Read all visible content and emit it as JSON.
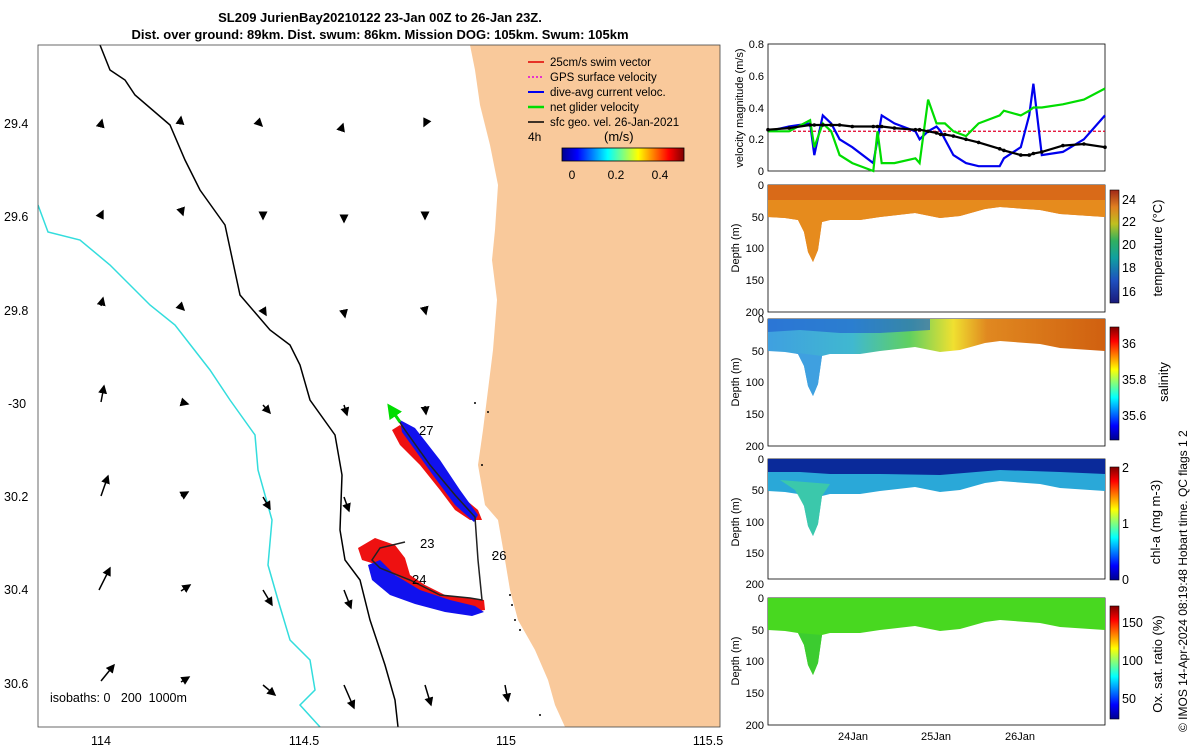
{
  "header": {
    "title_line1": "SL209 JurienBay20210122 23-Jan 00Z to 26-Jan 23Z.",
    "title_line2": "Dist. over ground: 89km. Dist. swum: 86km. Mission DOG: 105km. Swum: 105km"
  },
  "map": {
    "lon_ticks": [
      "114",
      "114.5",
      "115",
      "115.5"
    ],
    "lat_ticks": [
      "29.4",
      "29.6",
      "29.8",
      "-30",
      "30.2",
      "30.4",
      "30.6"
    ],
    "legend": [
      {
        "label": "25cm/s swim vector",
        "color": "#e00000"
      },
      {
        "label": "GPS surface velocity",
        "color": "#e000e0"
      },
      {
        "label": "dive-avg current veloc.",
        "color": "#0000ee"
      },
      {
        "label": "net glider velocity",
        "color": "#00dd00"
      },
      {
        "label": "sfc geo. vel. 26-Jan-2021",
        "color": "#000000"
      }
    ],
    "time_label": "4h",
    "colorbar_title": "(m/s)",
    "colorbar_ticks": [
      "0",
      "0.2",
      "0.4"
    ],
    "day_labels": [
      "23",
      "24",
      "26",
      "27"
    ],
    "isobaths_label": "isobaths: 0   200  1000m",
    "colors": {
      "land": "#f9c99b",
      "isobath_200": "#000000",
      "isobath_1000": "#33dddd"
    }
  },
  "chart_data": [
    {
      "type": "line",
      "title": "",
      "xlabel": "",
      "ylabel": "velocity magnitude (m/s)",
      "xlim": [
        0,
        4
      ],
      "ylim": [
        0,
        0.8
      ],
      "yticks": [
        "0",
        "0.2",
        "0.4",
        "0.6",
        "0.8"
      ],
      "x": [
        0,
        0.25,
        0.5,
        0.55,
        0.65,
        0.75,
        0.85,
        1.0,
        1.25,
        1.3,
        1.35,
        1.5,
        1.75,
        1.8,
        1.9,
        2.0,
        2.05,
        2.1,
        2.2,
        2.35,
        2.5,
        2.75,
        2.8,
        3.0,
        3.1,
        3.15,
        3.25,
        3.5,
        3.75,
        4.0
      ],
      "series": [
        {
          "name": "GPS surface velocity",
          "color": "#e000e0",
          "values": [
            0.25,
            0.25,
            0.25,
            0.25,
            0.25,
            0.25,
            0.25,
            0.25,
            0.25,
            0.25,
            0.25,
            0.25,
            0.25,
            0.25,
            0.25,
            0.25,
            0.25,
            0.25,
            0.25,
            0.25,
            0.25,
            0.25,
            0.25,
            0.25,
            0.25,
            0.25,
            0.25,
            0.25,
            0.25,
            0.25
          ]
        },
        {
          "name": "25cm/s swim vector",
          "color": "#e00000",
          "values": [
            0.25,
            0.25,
            0.25,
            0.25,
            0.25,
            0.25,
            0.25,
            0.25,
            0.25,
            0.25,
            0.25,
            0.25,
            0.25,
            0.25,
            0.25,
            0.25,
            0.25,
            0.25,
            0.25,
            0.25,
            0.25,
            0.25,
            0.25,
            0.25,
            0.25,
            0.25,
            0.25,
            0.25,
            0.25,
            0.25
          ]
        },
        {
          "name": "dive-avg current veloc.",
          "color": "#0000ee",
          "values": [
            0.25,
            0.28,
            0.3,
            0.1,
            0.35,
            0.3,
            0.2,
            0.15,
            0.05,
            0.2,
            0.35,
            0.3,
            0.25,
            0.2,
            0.25,
            0.28,
            0.25,
            0.2,
            0.1,
            0.05,
            0.03,
            0.03,
            0.08,
            0.15,
            0.35,
            0.55,
            0.1,
            0.12,
            0.2,
            0.35
          ]
        },
        {
          "name": "net glider velocity",
          "color": "#00dd00",
          "values": [
            0.25,
            0.25,
            0.32,
            0.15,
            0.3,
            0.25,
            0.1,
            0.05,
            0.0,
            0.25,
            0.05,
            0.05,
            0.08,
            0.05,
            0.45,
            0.3,
            0.3,
            0.3,
            0.25,
            0.22,
            0.3,
            0.35,
            0.38,
            0.35,
            0.38,
            0.4,
            0.4,
            0.42,
            0.45,
            0.52
          ]
        },
        {
          "name": "sfc geo. vel.",
          "color": "#000000",
          "values": [
            0.26,
            0.27,
            0.29,
            0.29,
            0.29,
            0.29,
            0.29,
            0.28,
            0.28,
            0.28,
            0.28,
            0.27,
            0.26,
            0.26,
            0.25,
            0.24,
            0.23,
            0.23,
            0.22,
            0.2,
            0.18,
            0.14,
            0.13,
            0.1,
            0.1,
            0.11,
            0.12,
            0.16,
            0.17,
            0.15
          ]
        }
      ]
    },
    {
      "type": "heatmap",
      "variable": "temperature",
      "clabel": "temperature (°C)",
      "clim": [
        15,
        25
      ],
      "cticks": [
        "16",
        "18",
        "20",
        "22",
        "24"
      ],
      "mixed_layer_value": 23,
      "deep_value": 21,
      "ylabel": "Depth (m)",
      "ylim": [
        200,
        0
      ],
      "yticks": [
        "0",
        "50",
        "100",
        "150",
        "200"
      ]
    },
    {
      "type": "heatmap",
      "variable": "salinity",
      "clabel": "salinity",
      "clim": [
        35.5,
        36.1
      ],
      "cticks": [
        "35.6",
        "35.8",
        "36"
      ],
      "values_along_track": [
        35.6,
        35.65,
        35.7,
        35.75,
        35.9,
        36.0,
        36.05,
        36.05,
        36.05
      ],
      "ylabel": "Depth (m)",
      "ylim": [
        200,
        0
      ],
      "yticks": [
        "0",
        "50",
        "100",
        "150",
        "200"
      ]
    },
    {
      "type": "heatmap",
      "variable": "chl-a",
      "clabel": "chl-a (mg m-3)",
      "clim": [
        0,
        2
      ],
      "cticks": [
        "0",
        "1",
        "2"
      ],
      "surface_value": 0.1,
      "subsurface_value": 0.8,
      "ylabel": "Depth (m)",
      "ylim": [
        200,
        0
      ],
      "yticks": [
        "0",
        "50",
        "100",
        "150",
        "200"
      ]
    },
    {
      "type": "heatmap",
      "variable": "oxygen",
      "clabel": "Ox. sat. ratio (%)",
      "clim": [
        25,
        175
      ],
      "cticks": [
        "50",
        "100",
        "150"
      ],
      "typical_value": 125,
      "ylabel": "Depth (m)",
      "ylim": [
        200,
        0
      ],
      "yticks": [
        "0",
        "50",
        "100",
        "150",
        "200"
      ],
      "xticks": [
        "24Jan",
        "25Jan",
        "26Jan"
      ]
    }
  ],
  "footer": {
    "credit": "© IMOS 14-Apr-2024 08:19:48 Hobart time. QC flags 1  2"
  }
}
